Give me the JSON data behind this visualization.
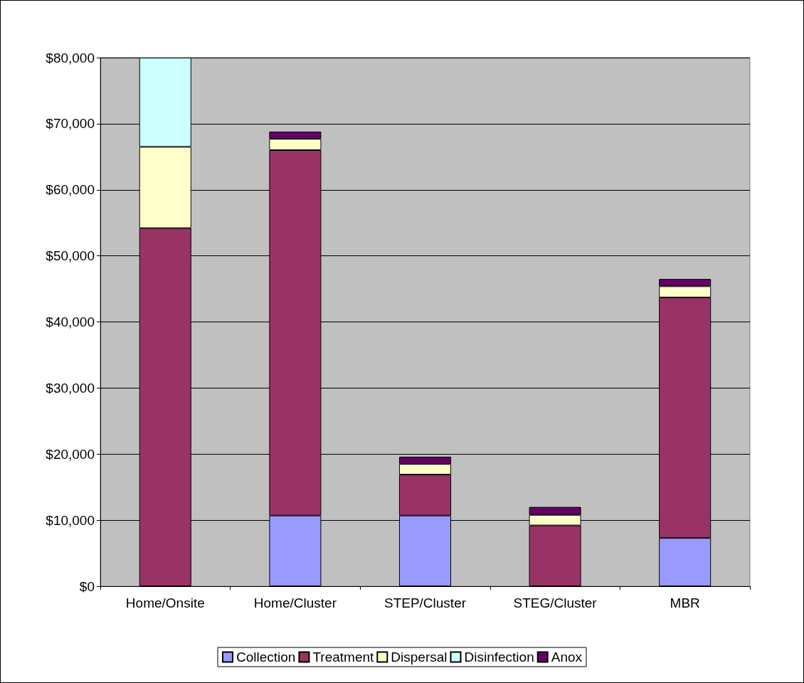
{
  "chart_data": {
    "type": "bar",
    "stacked": true,
    "categories": [
      "Home/Onsite",
      "Home/Cluster",
      "STEP/Cluster",
      "STEG/Cluster",
      "MBR"
    ],
    "series": [
      {
        "name": "Collection",
        "color": "#9999ff",
        "values": [
          0,
          10700,
          10700,
          0,
          7300
        ]
      },
      {
        "name": "Treatment",
        "color": "#993366",
        "values": [
          54200,
          55300,
          6200,
          9200,
          36400
        ]
      },
      {
        "name": "Dispersal",
        "color": "#ffffcc",
        "values": [
          12300,
          1700,
          1600,
          1600,
          1700
        ]
      },
      {
        "name": "Disinfection",
        "color": "#ccffff",
        "values": [
          13500,
          0,
          0,
          0,
          0
        ]
      },
      {
        "name": "Anox",
        "color": "#660066",
        "values": [
          0,
          1100,
          1100,
          1200,
          1100
        ]
      }
    ],
    "ylim": [
      0,
      80000
    ],
    "yticks": [
      {
        "value": 0,
        "label": "$0"
      },
      {
        "value": 10000,
        "label": "$10,000"
      },
      {
        "value": 20000,
        "label": "$20,000"
      },
      {
        "value": 30000,
        "label": "$30,000"
      },
      {
        "value": 40000,
        "label": "$40,000"
      },
      {
        "value": 50000,
        "label": "$50,000"
      },
      {
        "value": 60000,
        "label": "$60,000"
      },
      {
        "value": 70000,
        "label": "$70,000"
      },
      {
        "value": 80000,
        "label": "$80,000"
      }
    ],
    "grid": "y",
    "legend": "bottom"
  }
}
